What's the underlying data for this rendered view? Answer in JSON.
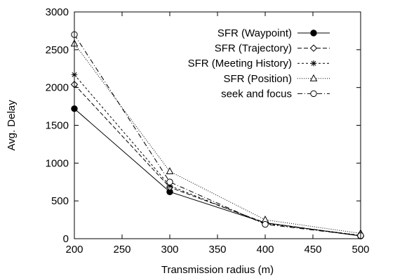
{
  "chart_data": {
    "type": "line",
    "title": "",
    "xlabel": "Transmission radius (m)",
    "ylabel": "Avg. Delay",
    "x": [
      200,
      300,
      400,
      500
    ],
    "xlim": [
      200,
      500
    ],
    "ylim": [
      0,
      3000
    ],
    "xticks": [
      200,
      250,
      300,
      350,
      400,
      450,
      500
    ],
    "yticks": [
      0,
      500,
      1000,
      1500,
      2000,
      2500,
      3000
    ],
    "grid": false,
    "legend_position": "top-right",
    "series": [
      {
        "name": "SFR (Waypoint)",
        "values": [
          1720,
          620,
          210,
          35
        ],
        "marker": "filled-circle",
        "dash": "solid"
      },
      {
        "name": "SFR (Trajectory)",
        "values": [
          2040,
          680,
          210,
          40
        ],
        "marker": "diamond",
        "dash": "dashed"
      },
      {
        "name": "SFR (Meeting History)",
        "values": [
          2170,
          700,
          200,
          45
        ],
        "marker": "asterisk",
        "dash": "short-dashed"
      },
      {
        "name": "SFR (Position)",
        "values": [
          2580,
          890,
          250,
          70
        ],
        "marker": "triangle",
        "dash": "dotted"
      },
      {
        "name": "seek and focus",
        "values": [
          2700,
          750,
          190,
          40
        ],
        "marker": "open-circle",
        "dash": "dash-dot"
      }
    ]
  }
}
